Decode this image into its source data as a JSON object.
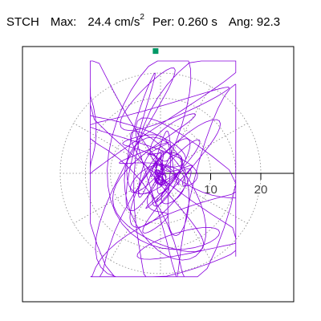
{
  "header": {
    "station": "STCH",
    "max_label": "Max:",
    "max_value": "24.4",
    "max_unit": "cm/s",
    "max_unit_exp": "2",
    "per_label": "Per:",
    "per_value": "0.260 s",
    "ang_label": "Ang:",
    "ang_value": "92.3"
  },
  "chart_data": {
    "type": "scatter",
    "title": "STCH   Max:  24.4 cm/s2  Per:  0.260 s   Ang:  92.3",
    "polar_grid": {
      "rings": [
        5,
        10,
        15,
        20
      ],
      "spokes_deg": [
        0,
        30,
        60,
        90,
        120,
        150,
        180,
        210,
        240,
        270,
        300,
        330
      ]
    },
    "x_axis": {
      "tick_labels": [
        "10",
        "20"
      ],
      "ticks": [
        10,
        20
      ],
      "range": [
        -25,
        25
      ]
    },
    "y_range": [
      -25,
      25
    ],
    "max_point": {
      "amplitude": 24.4,
      "angle_deg": 92.3
    },
    "colors": {
      "trace": "#8800dd",
      "marker": "#009966",
      "grid": "#888888",
      "frame": "#000000"
    }
  }
}
